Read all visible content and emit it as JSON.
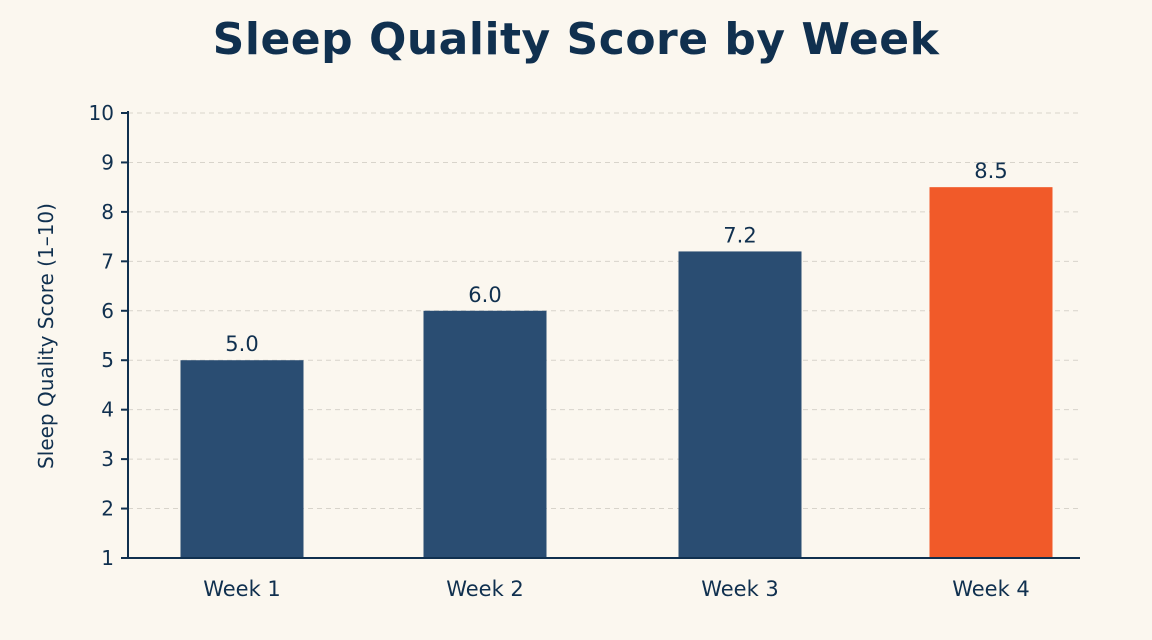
{
  "chart_data": {
    "type": "bar",
    "title": "Sleep Quality Score by Week",
    "xlabel": "",
    "ylabel": "Sleep Quality Score (1–10)",
    "categories": [
      "Week 1",
      "Week 2",
      "Week 3",
      "Week 4"
    ],
    "values": [
      5.0,
      6.0,
      7.2,
      8.5
    ],
    "data_labels": [
      "5.0",
      "6.0",
      "7.2",
      "8.5"
    ],
    "ylim": [
      1,
      10
    ],
    "yticks": [
      1,
      2,
      3,
      4,
      5,
      6,
      7,
      8,
      9,
      10
    ],
    "grid": true,
    "legend": "none",
    "colors": {
      "bar": "#2a4d72",
      "highlight_bar": "#f15a29",
      "axis": "#10304f",
      "grid": "#d8d4cb",
      "background": "#fbf7ef"
    },
    "highlight_index": 3
  }
}
